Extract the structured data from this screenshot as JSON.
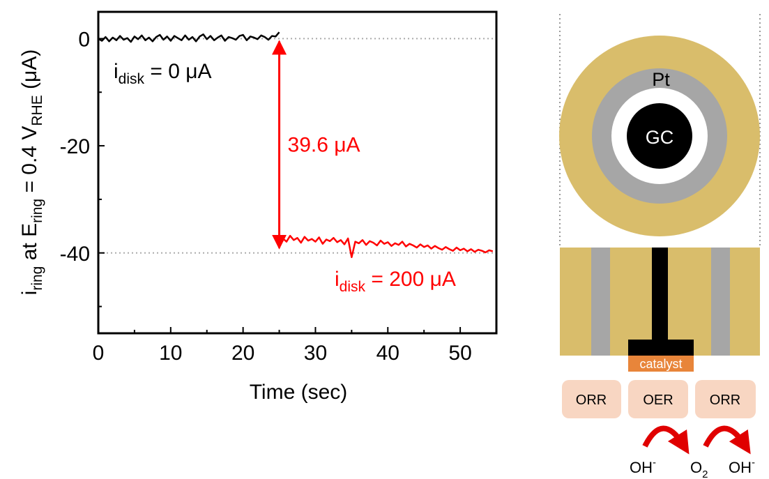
{
  "chart_data": {
    "type": "line",
    "xlabel": "Time (sec)",
    "ylabel": [
      {
        "text": "i"
      },
      {
        "text": "ring",
        "sub": true
      },
      {
        "text": " at E"
      },
      {
        "text": "ring",
        "sub": true
      },
      {
        "text": " = 0.4 V"
      },
      {
        "text": "RHE",
        "sub": true
      },
      {
        "text": " (μA)"
      }
    ],
    "xlim": [
      0,
      55
    ],
    "ylim": [
      -55,
      5
    ],
    "xticks": [
      0,
      10,
      20,
      30,
      40,
      50
    ],
    "yticks": [
      0,
      -20,
      -40
    ],
    "xminorticks": [
      5,
      15,
      25,
      35,
      45
    ],
    "yminorticks": [
      -10,
      -30,
      -50
    ],
    "hlines": [
      0,
      -40
    ],
    "hline_color": "#aaaaaa",
    "series": [
      {
        "color": "#000000",
        "x": [
          0,
          0.5,
          1,
          1.5,
          2,
          2.5,
          3,
          3.5,
          4,
          4.5,
          5,
          5.5,
          6,
          6.5,
          7,
          7.5,
          8,
          8.5,
          9,
          9.5,
          10,
          10.5,
          11,
          11.5,
          12,
          12.5,
          13,
          13.5,
          14,
          14.5,
          15,
          15.5,
          16,
          16.5,
          17,
          17.5,
          18,
          18.5,
          19,
          19.5,
          20,
          20.5,
          21,
          21.5,
          22,
          22.5,
          23,
          23.5,
          24,
          24.5,
          25
        ],
        "values": [
          0,
          -0.4,
          0.3,
          -0.5,
          0.2,
          -0.3,
          0.5,
          -0.2,
          0.1,
          -0.6,
          0.4,
          -0.1,
          0.6,
          -0.3,
          0.2,
          -0.5,
          0.3,
          0.7,
          -0.2,
          0.4,
          -0.4,
          0.5,
          0.1,
          -0.3,
          0.6,
          -0.2,
          0.3,
          -0.5,
          0.4,
          0.8,
          -0.1,
          0.5,
          -0.3,
          0.2,
          0.6,
          -0.4,
          0.3,
          0.1,
          -0.2,
          0.5,
          0.7,
          -0.3,
          0.4,
          0.2,
          -0.1,
          0.6,
          0.3,
          -0.2,
          0.5,
          0.4,
          1.2
        ]
      },
      {
        "color": "#ff0000",
        "x": [
          25,
          25.5,
          26,
          26.5,
          27,
          27.5,
          28,
          28.5,
          29,
          29.5,
          30,
          30.5,
          31,
          31.5,
          32,
          32.5,
          33,
          33.5,
          34,
          34.5,
          35,
          35.5,
          36,
          36.5,
          37,
          37.5,
          38,
          38.5,
          39,
          39.5,
          40,
          40.5,
          41,
          41.5,
          42,
          42.5,
          43,
          43.5,
          44,
          44.5,
          45,
          45.5,
          46,
          46.5,
          47,
          47.5,
          48,
          48.5,
          49,
          49.5,
          50,
          50.5,
          51,
          51.5,
          52,
          52.5,
          53,
          53.5,
          54,
          54.5
        ],
        "values": [
          -38.2,
          -37.3,
          -37.9,
          -36.8,
          -37.6,
          -37.2,
          -38.1,
          -37.0,
          -37.7,
          -37.4,
          -37.9,
          -37.1,
          -38.3,
          -37.5,
          -37.8,
          -37.2,
          -38.0,
          -37.6,
          -38.4,
          -37.3,
          -40.8,
          -37.9,
          -38.2,
          -37.6,
          -38.5,
          -37.8,
          -38.1,
          -38.6,
          -37.7,
          -38.3,
          -38.0,
          -38.7,
          -38.2,
          -38.5,
          -37.9,
          -38.8,
          -38.3,
          -38.6,
          -39.0,
          -38.4,
          -38.9,
          -38.6,
          -39.2,
          -38.7,
          -39.1,
          -39.4,
          -38.9,
          -39.3,
          -39.6,
          -39.0,
          -39.5,
          -39.2,
          -39.7,
          -39.3,
          -39.8,
          -39.4,
          -39.6,
          -39.9,
          -39.5,
          -39.7
        ]
      }
    ],
    "arrow": {
      "x": 25,
      "from": 0,
      "to": -39.6,
      "label": "39.6 μA",
      "color": "#ff0000"
    },
    "annotations": [
      {
        "color": "#000000",
        "segments": [
          {
            "text": "i"
          },
          {
            "text": "disk",
            "sub": true
          },
          {
            "text": " = 0 μA"
          }
        ]
      },
      {
        "color": "#ff0000",
        "segments": [
          {
            "text": "i"
          },
          {
            "text": "disk",
            "sub": true
          },
          {
            "text": " = 200 μA"
          }
        ]
      }
    ]
  },
  "diagram": {
    "ring_label": "Pt",
    "disk_label": "GC",
    "catalyst_label": "catalyst",
    "reactions": [
      "ORR",
      "OER",
      "ORR"
    ],
    "species": [
      [
        {
          "text": "OH"
        },
        {
          "text": "-",
          "sup": true
        }
      ],
      [
        {
          "text": "O"
        },
        {
          "text": "2",
          "sub": true
        }
      ],
      [
        {
          "text": "OH"
        },
        {
          "text": "-",
          "sup": true
        }
      ]
    ]
  }
}
